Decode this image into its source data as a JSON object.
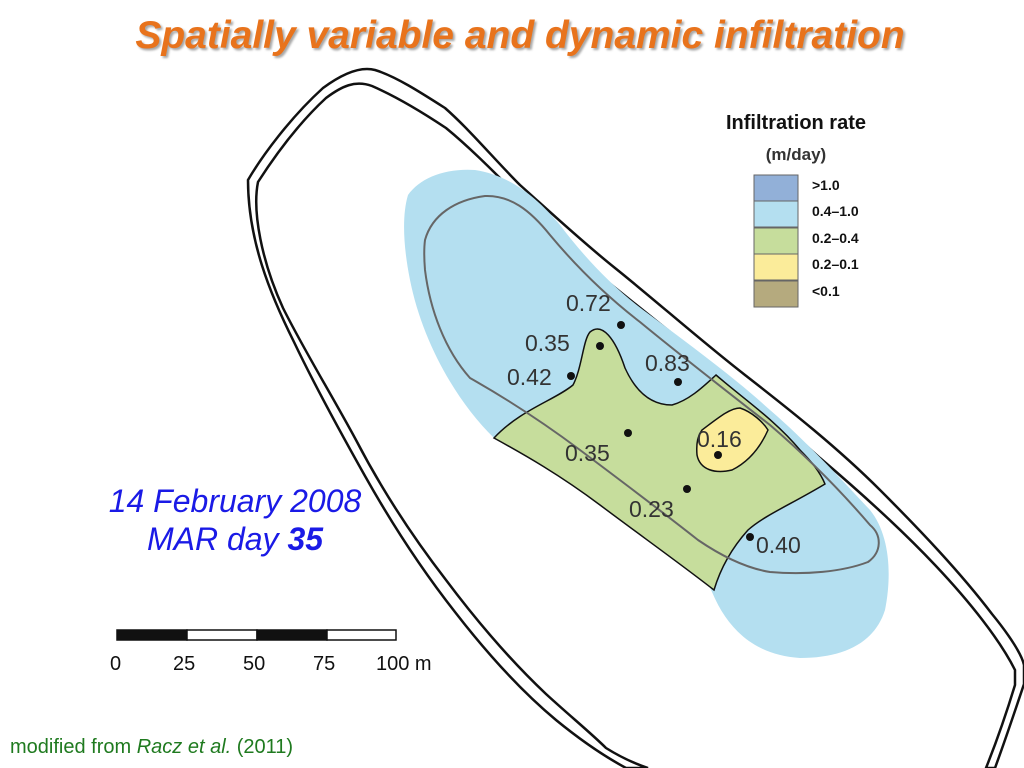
{
  "title": "Spatially variable and dynamic infiltration",
  "legend": {
    "title": "Infiltration rate",
    "units": "(m/day)",
    "items": [
      {
        "label": ">1.0",
        "color": "#92b0d8"
      },
      {
        "label": "0.4–1.0",
        "color": "#b4dff0"
      },
      {
        "label": "0.2–0.4",
        "color": "#c6dd9c"
      },
      {
        "label": "0.2–0.1",
        "color": "#fbec9a"
      },
      {
        "label": "<0.1",
        "color": "#b5aa7e"
      }
    ]
  },
  "measurements": [
    {
      "value": "0.72"
    },
    {
      "value": "0.35"
    },
    {
      "value": "0.42"
    },
    {
      "value": "0.83"
    },
    {
      "value": "0.35"
    },
    {
      "value": "0.16"
    },
    {
      "value": "0.23"
    },
    {
      "value": "0.40"
    }
  ],
  "date": {
    "line1": "14 February 2008",
    "line2_prefix": "MAR day",
    "day_number": "35"
  },
  "scale_bar": {
    "ticks": [
      "0",
      "25",
      "50",
      "75",
      "100 m"
    ]
  },
  "citation": {
    "prefix": "modified from",
    "authors": "Racz et al.",
    "year": "(2011)"
  },
  "colors": {
    "title": "#e8731c",
    "date": "#1a1ae6",
    "citation": "#1f7a1f"
  }
}
